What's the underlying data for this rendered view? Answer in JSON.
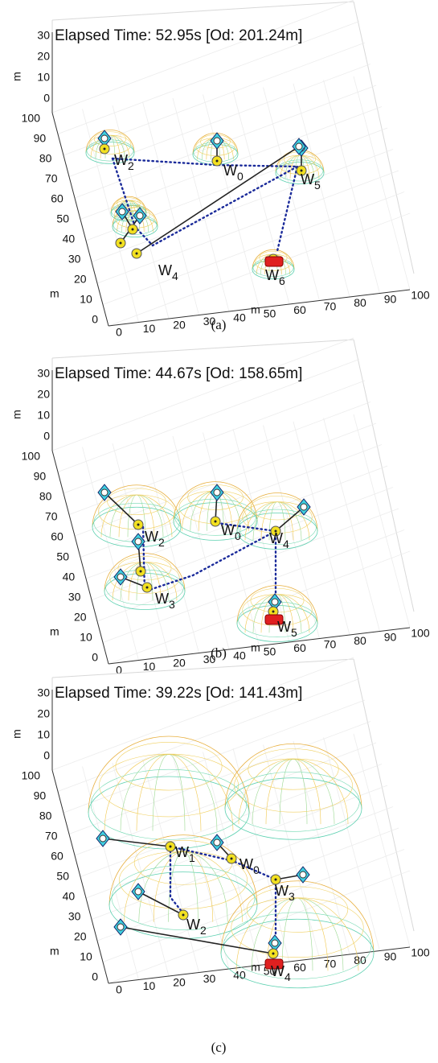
{
  "panels": [
    {
      "title": "Elapsed Time: 52.95s  [Od: 201.24m]",
      "z_ticks": [
        30,
        20,
        10,
        0
      ],
      "y_ticks": [
        100,
        90,
        80,
        70,
        60,
        50,
        40,
        30,
        20,
        10,
        0
      ],
      "x_ticks": [
        0,
        10,
        20,
        30,
        40,
        50,
        60,
        70,
        80,
        90,
        100
      ],
      "z_label": "m",
      "y_label": "m",
      "x_label": "m",
      "waypoints": [
        {
          "letter": "W",
          "index": "2"
        },
        {
          "letter": "W",
          "index": "0"
        },
        {
          "letter": "W",
          "index": "5"
        },
        {
          "letter": "W",
          "index": "4"
        },
        {
          "letter": "W",
          "index": "6"
        }
      ],
      "caption": "(a)"
    },
    {
      "title": "Elapsed Time: 44.67s  [Od: 158.65m]",
      "z_ticks": [
        30,
        20,
        10,
        0
      ],
      "y_ticks": [
        100,
        90,
        80,
        70,
        60,
        50,
        40,
        30,
        20,
        10,
        0
      ],
      "x_ticks": [
        0,
        10,
        20,
        30,
        40,
        50,
        60,
        70,
        80,
        90,
        100
      ],
      "z_label": "m",
      "y_label": "m",
      "x_label": "m",
      "waypoints": [
        {
          "letter": "W",
          "index": "2"
        },
        {
          "letter": "W",
          "index": "0"
        },
        {
          "letter": "W",
          "index": "4"
        },
        {
          "letter": "W",
          "index": "3"
        },
        {
          "letter": "W",
          "index": "5"
        }
      ],
      "caption": "(b)"
    },
    {
      "title": "Elapsed Time: 39.22s  [Od: 141.43m]",
      "z_ticks": [
        30,
        20,
        10,
        0
      ],
      "y_ticks": [
        100,
        90,
        80,
        70,
        60,
        50,
        40,
        30,
        20,
        10,
        0
      ],
      "x_ticks": [
        0,
        10,
        20,
        30,
        40,
        50,
        60,
        70,
        80,
        90,
        100
      ],
      "z_label": "m",
      "y_label": "m",
      "x_label": "m",
      "waypoints": [
        {
          "letter": "W",
          "index": "1"
        },
        {
          "letter": "W",
          "index": "0"
        },
        {
          "letter": "W",
          "index": "3"
        },
        {
          "letter": "W",
          "index": "2"
        },
        {
          "letter": "W",
          "index": "4"
        }
      ],
      "caption": "(c)"
    }
  ]
}
